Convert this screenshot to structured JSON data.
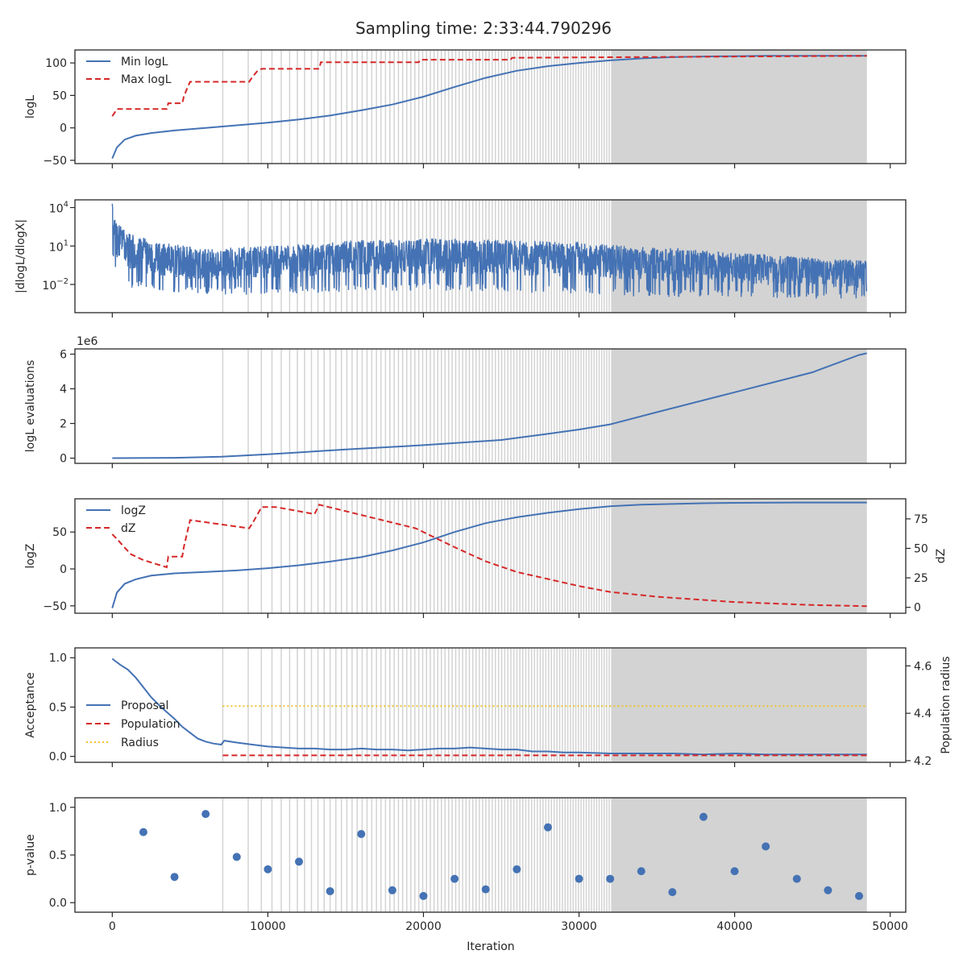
{
  "title": "Sampling time: 2:33:44.790296",
  "xlabel": "Iteration",
  "colors": {
    "blue": "#4472b4",
    "red": "#d62728",
    "yellow": "#f2c12e",
    "vline": "#d3d3d3",
    "shade": "#d3d3d3",
    "axes": "#262626"
  },
  "shading": {
    "vlines_start": 7100,
    "shade_start": 32100,
    "end": 48500
  },
  "chart_data": [
    {
      "id": "logl",
      "type": "line",
      "ylabel": "logL",
      "xlim": [
        -2400,
        51000
      ],
      "ylim": [
        -55,
        120
      ],
      "xticks": [
        0,
        10000,
        20000,
        30000,
        40000,
        50000
      ],
      "yticks": [
        -50,
        0,
        50,
        100
      ],
      "ytick_labels": [
        "−50",
        "0",
        "50",
        "100"
      ],
      "legend": [
        "Min logL",
        "Max logL"
      ],
      "legend_position": "upper-left",
      "series": [
        {
          "name": "Min logL",
          "style": "solid",
          "color": "#4472b4",
          "x": [
            0,
            300,
            800,
            1500,
            2500,
            4000,
            6000,
            8000,
            10000,
            12000,
            14000,
            16000,
            18000,
            20000,
            22000,
            24000,
            26000,
            28000,
            30000,
            32000,
            34000,
            36000,
            38000,
            40000,
            42000,
            44000,
            46000,
            48500
          ],
          "y": [
            -47,
            -30,
            -18,
            -12,
            -8,
            -4,
            0,
            4,
            8,
            13,
            19,
            27,
            36,
            48,
            63,
            77,
            88,
            95,
            100,
            104,
            107,
            109,
            110,
            110.5,
            111,
            111,
            111,
            111
          ]
        },
        {
          "name": "Max logL",
          "style": "dashed",
          "color": "#d62728",
          "x": [
            0,
            200,
            300,
            3500,
            3600,
            4500,
            4600,
            4800,
            5000,
            8800,
            9000,
            9300,
            9600,
            13300,
            13400,
            19700,
            19800,
            25600,
            25700,
            48500
          ],
          "y": [
            18,
            25,
            29,
            29,
            38,
            38,
            48,
            60,
            71,
            71,
            78,
            87,
            91,
            91,
            101,
            101,
            105,
            105,
            108,
            111
          ]
        }
      ]
    },
    {
      "id": "dlogl",
      "type": "line",
      "ylabel": "|dlogL/dlogX|",
      "yscale": "log",
      "xlim": [
        -2400,
        51000
      ],
      "ylim_log10": [
        -4.2,
        4.6
      ],
      "xticks": [
        0,
        10000,
        20000,
        30000,
        40000,
        50000
      ],
      "yticks_log10": [
        -2,
        1,
        4
      ],
      "ytick_labels": [
        "10",
        "10",
        "10"
      ],
      "ytick_exponents": [
        "−2",
        "1",
        "4"
      ],
      "envelope": {
        "x": [
          0,
          300,
          1000,
          3000,
          6000,
          10000,
          15000,
          20000,
          25000,
          30000,
          35000,
          40000,
          45000,
          48500
        ],
        "upper_log10": [
          4.3,
          2.8,
          2.0,
          1.3,
          0.8,
          1.0,
          1.4,
          1.6,
          1.5,
          1.3,
          0.9,
          0.5,
          0.1,
          -0.1
        ],
        "lower_log10": [
          0.0,
          -1.6,
          -2.2,
          -2.6,
          -2.8,
          -2.8,
          -2.6,
          -2.5,
          -2.6,
          -2.8,
          -3.0,
          -3.0,
          -3.1,
          -3.1
        ]
      }
    },
    {
      "id": "evals",
      "type": "line",
      "ylabel": "logL evaluations",
      "offset_label": "1e6",
      "xlim": [
        -2400,
        51000
      ],
      "ylim": [
        -0.3,
        6.3
      ],
      "xticks": [
        0,
        10000,
        20000,
        30000,
        40000,
        50000
      ],
      "yticks": [
        0,
        2,
        4,
        6
      ],
      "ytick_labels": [
        "0",
        "2",
        "4",
        "6"
      ],
      "series": [
        {
          "name": "",
          "style": "solid",
          "color": "#4472b4",
          "x": [
            0,
            4000,
            7000,
            10000,
            15000,
            20000,
            25000,
            28000,
            30000,
            32000,
            35000,
            40000,
            45000,
            48000,
            48500
          ],
          "y": [
            0,
            0.02,
            0.08,
            0.22,
            0.5,
            0.75,
            1.05,
            1.4,
            1.65,
            1.95,
            2.65,
            3.8,
            4.95,
            5.95,
            6.05
          ]
        }
      ]
    },
    {
      "id": "logz",
      "type": "line",
      "ylabel": "logZ",
      "ylabel_right": "dZ",
      "xlim": [
        -2400,
        51000
      ],
      "ylim": [
        -60,
        95
      ],
      "ylim_right": [
        -5,
        92
      ],
      "xticks": [
        0,
        10000,
        20000,
        30000,
        40000,
        50000
      ],
      "yticks": [
        -50,
        0,
        50
      ],
      "ytick_labels": [
        "−50",
        "0",
        "50"
      ],
      "yticks_right": [
        0,
        25,
        50,
        75
      ],
      "ytick_labels_right": [
        "0",
        "25",
        "50",
        "75"
      ],
      "legend": [
        "logZ",
        "dZ"
      ],
      "legend_position": "upper-left",
      "series": [
        {
          "name": "logZ",
          "axis": "left",
          "style": "solid",
          "color": "#4472b4",
          "x": [
            0,
            300,
            800,
            1500,
            2500,
            4000,
            6000,
            8000,
            10000,
            12000,
            14000,
            16000,
            18000,
            20000,
            22000,
            24000,
            26000,
            28000,
            30000,
            32000,
            34000,
            36000,
            38000,
            40000,
            44000,
            48500
          ],
          "y": [
            -53,
            -32,
            -20,
            -14,
            -9,
            -6,
            -4,
            -2,
            1,
            5,
            10,
            16,
            25,
            36,
            50,
            62,
            70,
            76,
            81,
            85,
            87,
            88,
            89,
            89.5,
            90,
            90
          ]
        },
        {
          "name": "dZ",
          "axis": "right",
          "style": "dashed",
          "color": "#d62728",
          "x": [
            0,
            300,
            700,
            1200,
            2000,
            3000,
            3500,
            3600,
            4500,
            4600,
            5000,
            8800,
            9000,
            9600,
            10500,
            13000,
            13300,
            19500,
            22000,
            24000,
            26000,
            28000,
            30000,
            32000,
            35000,
            40000,
            45000,
            48500
          ],
          "y": [
            62,
            58,
            52,
            45,
            40,
            36,
            34,
            43,
            43,
            51,
            74,
            67,
            71,
            85,
            85,
            79,
            87,
            67,
            51,
            39,
            30,
            24,
            18,
            13,
            9,
            4.5,
            2,
            1
          ]
        }
      ]
    },
    {
      "id": "accept",
      "type": "line",
      "ylabel": "Acceptance",
      "ylabel_right": "Population radius",
      "xlim": [
        -2400,
        51000
      ],
      "ylim": [
        -0.06,
        1.1
      ],
      "ylim_right": [
        4.193,
        4.676
      ],
      "xticks": [
        0,
        10000,
        20000,
        30000,
        40000,
        50000
      ],
      "yticks": [
        0.0,
        0.5,
        1.0
      ],
      "ytick_labels": [
        "0.0",
        "0.5",
        "1.0"
      ],
      "yticks_right": [
        4.2,
        4.4,
        4.6
      ],
      "ytick_labels_right": [
        "4.2",
        "4.4",
        "4.6"
      ],
      "legend": [
        "Proposal",
        "Population",
        "Radius"
      ],
      "legend_position": "center-left",
      "series": [
        {
          "name": "Proposal",
          "axis": "left",
          "style": "solid",
          "color": "#4472b4",
          "x": [
            0,
            500,
            1000,
            1500,
            2000,
            2500,
            3000,
            3500,
            4000,
            4500,
            5000,
            5500,
            6000,
            6500,
            7000,
            7200,
            8000,
            9000,
            10000,
            11000,
            12000,
            13000,
            14000,
            15000,
            16000,
            17000,
            18000,
            19000,
            20000,
            21000,
            22000,
            23000,
            24000,
            25000,
            26000,
            27000,
            28000,
            29000,
            30000,
            32000,
            34000,
            36000,
            38000,
            40000,
            42000,
            44000,
            46000,
            48500
          ],
          "y": [
            0.99,
            0.93,
            0.88,
            0.8,
            0.7,
            0.6,
            0.52,
            0.45,
            0.38,
            0.3,
            0.24,
            0.18,
            0.15,
            0.13,
            0.12,
            0.16,
            0.14,
            0.12,
            0.1,
            0.09,
            0.08,
            0.08,
            0.07,
            0.07,
            0.08,
            0.07,
            0.07,
            0.06,
            0.07,
            0.08,
            0.08,
            0.09,
            0.08,
            0.07,
            0.07,
            0.05,
            0.05,
            0.04,
            0.04,
            0.03,
            0.03,
            0.03,
            0.02,
            0.03,
            0.02,
            0.02,
            0.02,
            0.02
          ]
        },
        {
          "name": "Population",
          "axis": "left",
          "style": "dashed",
          "color": "#d62728",
          "x": [
            7100,
            48500
          ],
          "y": [
            0.01,
            0.01
          ]
        },
        {
          "name": "Radius",
          "axis": "right",
          "style": "dotted",
          "color": "#f2c12e",
          "x": [
            7100,
            48500
          ],
          "y": [
            4.43,
            4.43
          ]
        }
      ]
    },
    {
      "id": "pvalue",
      "type": "scatter",
      "ylabel": "p-value",
      "xlim": [
        -2400,
        51000
      ],
      "ylim": [
        -0.1,
        1.1
      ],
      "xticks": [
        0,
        10000,
        20000,
        30000,
        40000,
        50000
      ],
      "xtick_labels": [
        "0",
        "10000",
        "20000",
        "30000",
        "40000",
        "50000"
      ],
      "yticks": [
        0.0,
        0.5,
        1.0
      ],
      "ytick_labels": [
        "0.0",
        "0.5",
        "1.0"
      ],
      "series": [
        {
          "name": "",
          "color": "#4472b4",
          "x": [
            2000,
            4000,
            6000,
            8000,
            10000,
            12000,
            14000,
            16000,
            18000,
            20000,
            22000,
            24000,
            26000,
            28000,
            30000,
            32000,
            34000,
            36000,
            38000,
            40000,
            42000,
            44000,
            46000,
            48000
          ],
          "y": [
            0.74,
            0.27,
            0.93,
            0.48,
            0.35,
            0.43,
            0.12,
            0.72,
            0.13,
            0.07,
            0.25,
            0.14,
            0.35,
            0.79,
            0.25,
            0.25,
            0.33,
            0.11,
            0.9,
            0.33,
            0.59,
            0.25,
            0.13,
            0.07
          ]
        }
      ]
    }
  ]
}
